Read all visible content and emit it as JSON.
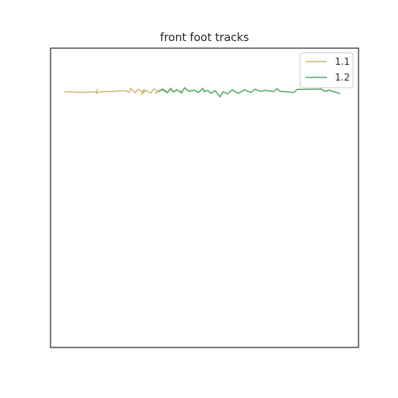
{
  "chart_data": {
    "type": "line",
    "title": "front foot tracks",
    "xlabel": "",
    "ylabel": "",
    "xlim": [
      0,
      100
    ],
    "ylim": [
      0,
      100
    ],
    "grid": false,
    "axis_ticks": false,
    "legend_position": "top-right",
    "series": [
      {
        "name": "1.1",
        "color": "#ccb974",
        "x": [
          4.5,
          10,
          15,
          15.3,
          14.8,
          16,
          20,
          24.5,
          25.5,
          26,
          27.5,
          28.5,
          29.5,
          30.5,
          29.5,
          31,
          32.5,
          33.5,
          35,
          34,
          36,
          37.5,
          39,
          40,
          41,
          42,
          43
        ],
        "y": [
          85.5,
          85.2,
          85.4,
          86.3,
          84.9,
          85.4,
          85.6,
          85.8,
          85.2,
          86.6,
          85.1,
          86.3,
          85.4,
          86.2,
          84.5,
          85.9,
          85.0,
          86.4,
          85.6,
          84.8,
          86.3,
          85.2,
          86.1,
          85.4,
          86.0,
          85.5,
          85.7
        ]
      },
      {
        "name": "1.2",
        "color": "#55a868",
        "x": [
          35,
          36.5,
          38,
          39,
          40,
          41,
          42.5,
          43.5,
          45,
          46.5,
          48,
          49.5,
          50,
          51,
          52,
          53.5,
          55,
          56,
          57.5,
          59,
          60,
          61,
          63,
          65,
          66.5,
          68,
          70,
          72.5,
          73.5,
          74.5,
          76,
          79,
          80,
          81.5,
          85,
          88,
          89,
          90.5,
          94
        ],
        "y": [
          85.4,
          86.3,
          85.1,
          86.6,
          85.3,
          86.2,
          85.0,
          86.8,
          85.6,
          86.0,
          85.2,
          86.6,
          85.4,
          86.0,
          84.9,
          85.8,
          83.7,
          85.5,
          84.7,
          86.1,
          85.4,
          84.9,
          86.1,
          85.2,
          86.3,
          85.6,
          85.9,
          85.5,
          86.5,
          85.6,
          85.5,
          85.2,
          86.2,
          86.2,
          86.3,
          86.3,
          85.6,
          86.0,
          84.8
        ]
      }
    ]
  }
}
